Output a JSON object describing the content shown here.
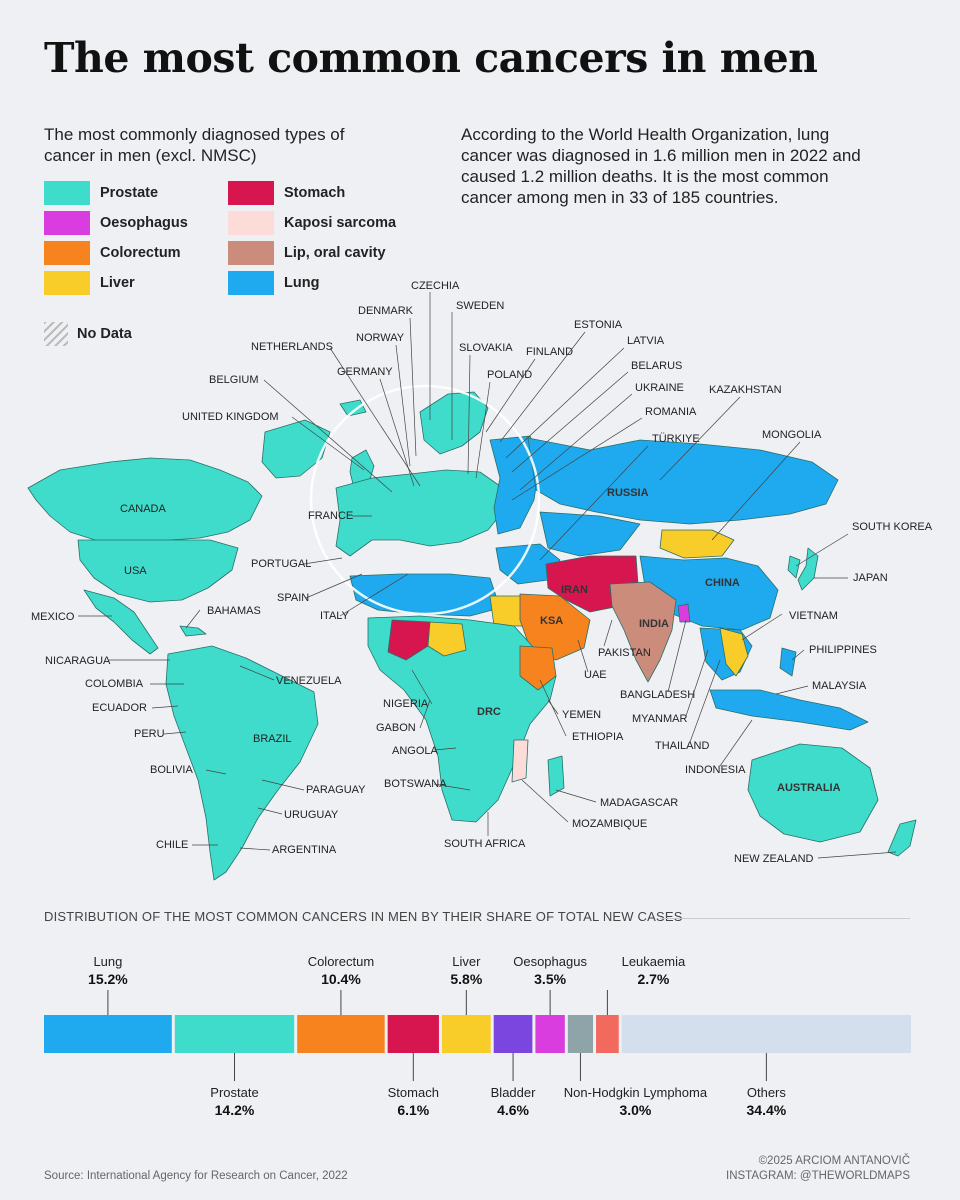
{
  "title": "The most common cancers in men",
  "subtitle": "The most commonly diagnosed types of cancer in men (excl. NMSC)",
  "note": "According to the World Health Organization, lung cancer was diagnosed in 1.6 million men in 2022 and caused 1.2 million deaths. It is the most common cancer among men in 33 of 185 countries.",
  "legend": [
    {
      "label": "Prostate",
      "color": "#3fdccb"
    },
    {
      "label": "Oesophagus",
      "color": "#d93ddf"
    },
    {
      "label": "Colorectum",
      "color": "#f7831e"
    },
    {
      "label": "Liver",
      "color": "#f8cd2a"
    },
    {
      "label": "Stomach",
      "color": "#d7164f"
    },
    {
      "label": "Kaposi sarcoma",
      "color": "#fbdcd9"
    },
    {
      "label": "Lip, oral cavity",
      "color": "#cc8c7c"
    },
    {
      "label": "Lung",
      "color": "#1fa9ee"
    }
  ],
  "no_data_label": "No Data",
  "country_labels": [
    "CANADA",
    "USA",
    "MEXICO",
    "BAHAMAS",
    "NICARAGUA",
    "COLOMBIA",
    "VENEZUELA",
    "ECUADOR",
    "PERU",
    "BRAZIL",
    "BOLIVIA",
    "PARAGUAY",
    "URUGUAY",
    "CHILE",
    "ARGENTINA",
    "CZECHIA",
    "SWEDEN",
    "DENMARK",
    "NORWAY",
    "SLOVAKIA",
    "ESTONIA",
    "LATVIA",
    "FINLAND",
    "NETHERLANDS",
    "BELARUS",
    "POLAND",
    "GERMANY",
    "BELGIUM",
    "UKRAINE",
    "KAZAKHSTAN",
    "ROMANIA",
    "UNITED KINGDOM",
    "TÜRKIYE",
    "MONGOLIA",
    "RUSSIA",
    "FRANCE",
    "SOUTH KOREA",
    "PORTUGAL",
    "JAPAN",
    "CHINA",
    "IRAN",
    "SPAIN",
    "ITALY",
    "KSA",
    "INDIA",
    "VIETNAM",
    "PHILIPPINES",
    "PAKISTAN",
    "UAE",
    "MALAYSIA",
    "BANGLADESH",
    "NIGERIA",
    "DRC",
    "YEMEN",
    "MYANMAR",
    "GABON",
    "ETHIOPIA",
    "ANGOLA",
    "THAILAND",
    "INDONESIA",
    "BOTSWANA",
    "AUSTRALIA",
    "MADAGASCAR",
    "MOZAMBIQUE",
    "SOUTH AFRICA",
    "NEW ZEALAND"
  ],
  "distribution_title": "DISTRIBUTION OF THE MOST COMMON CANCERS IN MEN BY THEIR SHARE OF TOTAL NEW CASES",
  "chart_data": {
    "type": "bar",
    "orientation": "stacked-horizontal",
    "title": "DISTRIBUTION OF THE MOST COMMON CANCERS IN MEN BY THEIR SHARE OF TOTAL NEW CASES",
    "unit": "%",
    "categories": [
      "Lung",
      "Prostate",
      "Colorectum",
      "Stomach",
      "Liver",
      "Bladder",
      "Oesophagus",
      "Non-Hodgkin Lymphoma",
      "Leukaemia",
      "Others"
    ],
    "values": [
      15.2,
      14.2,
      10.4,
      6.1,
      5.8,
      4.6,
      3.5,
      3.0,
      2.7,
      34.4
    ],
    "value_labels": [
      "15.2%",
      "14.2%",
      "10.4%",
      "6.1%",
      "5.8%",
      "4.6%",
      "3.5%",
      "3.0%",
      "2.7%",
      "34.4%"
    ],
    "colors": [
      "#1fa9ee",
      "#3fdccb",
      "#f7831e",
      "#d7164f",
      "#f8cd2a",
      "#7b45e0",
      "#d93ddf",
      "#8fa4a8",
      "#f26a5e",
      "#d4dfee"
    ],
    "label_side": [
      "top",
      "bottom",
      "top",
      "bottom",
      "top",
      "bottom",
      "top",
      "bottom",
      "top",
      "bottom"
    ]
  },
  "source": "Source: International Agency for Research on Cancer, 2022",
  "credit_line1": "©2025 ARCIOM ANTANOVIČ",
  "credit_line2": "INSTAGRAM: @THEWORLDMAPS"
}
